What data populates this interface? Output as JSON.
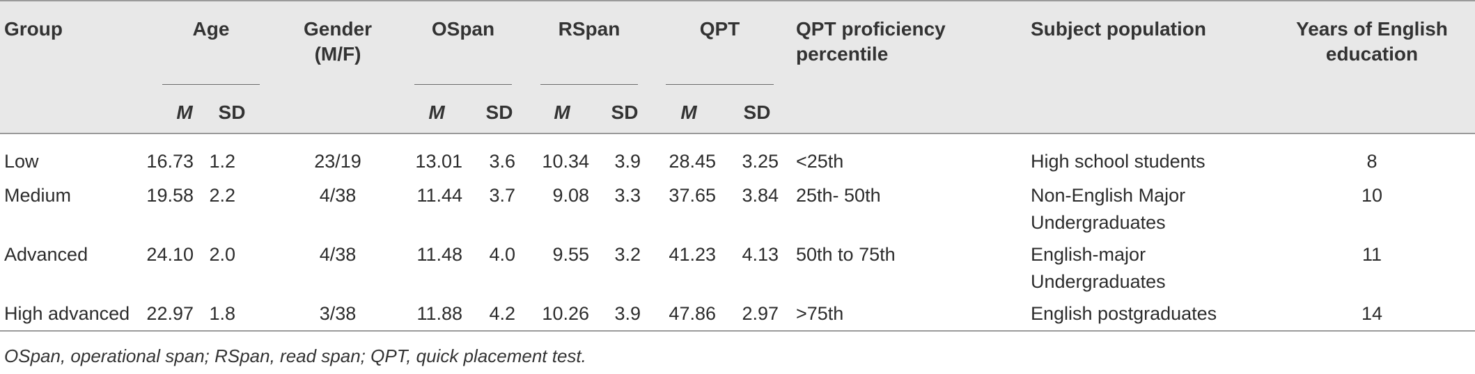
{
  "header": {
    "group": "Group",
    "age": "Age",
    "gender_line1": "Gender",
    "gender_line2": "(M/F)",
    "ospan": "OSpan",
    "rspan": "RSpan",
    "qpt": "QPT",
    "percentile_line1": "QPT proficiency",
    "percentile_line2": "percentile",
    "population": "Subject population",
    "years_line1": "Years of English",
    "years_line2": "education",
    "m": "M",
    "sd": "SD"
  },
  "rows": [
    {
      "group": "Low",
      "age_m": "16.73",
      "age_sd": "1.2",
      "gender": "23/19",
      "ospan_m": "13.01",
      "ospan_sd": "3.6",
      "rspan_m": "10.34",
      "rspan_sd": "3.9",
      "qpt_m": "28.45",
      "qpt_sd": "3.25",
      "percentile": "<25th",
      "population_line1": "High school students",
      "population_line2": "",
      "years": "8"
    },
    {
      "group": "Medium",
      "age_m": "19.58",
      "age_sd": "2.2",
      "gender": "4/38",
      "ospan_m": "11.44",
      "ospan_sd": "3.7",
      "rspan_m": "9.08",
      "rspan_sd": "3.3",
      "qpt_m": "37.65",
      "qpt_sd": "3.84",
      "percentile": "25th- 50th",
      "population_line1": "Non-English Major",
      "population_line2": "Undergraduates",
      "years": "10"
    },
    {
      "group": "Advanced",
      "age_m": "24.10",
      "age_sd": "2.0",
      "gender": "4/38",
      "ospan_m": "11.48",
      "ospan_sd": "4.0",
      "rspan_m": "9.55",
      "rspan_sd": "3.2",
      "qpt_m": "41.23",
      "qpt_sd": "4.13",
      "percentile": "50th to 75th",
      "population_line1": "English-major",
      "population_line2": "Undergraduates",
      "years": "11"
    },
    {
      "group": "High advanced",
      "age_m": "22.97",
      "age_sd": "1.8",
      "gender": "3/38",
      "ospan_m": "11.88",
      "ospan_sd": "4.2",
      "rspan_m": "10.26",
      "rspan_sd": "3.9",
      "qpt_m": "47.86",
      "qpt_sd": "2.97",
      "percentile": ">75th",
      "population_line1": "English postgraduates",
      "population_line2": "",
      "years": "14"
    }
  ],
  "footnote": "OSpan, operational span; RSpan, read span; QPT, quick placement test."
}
